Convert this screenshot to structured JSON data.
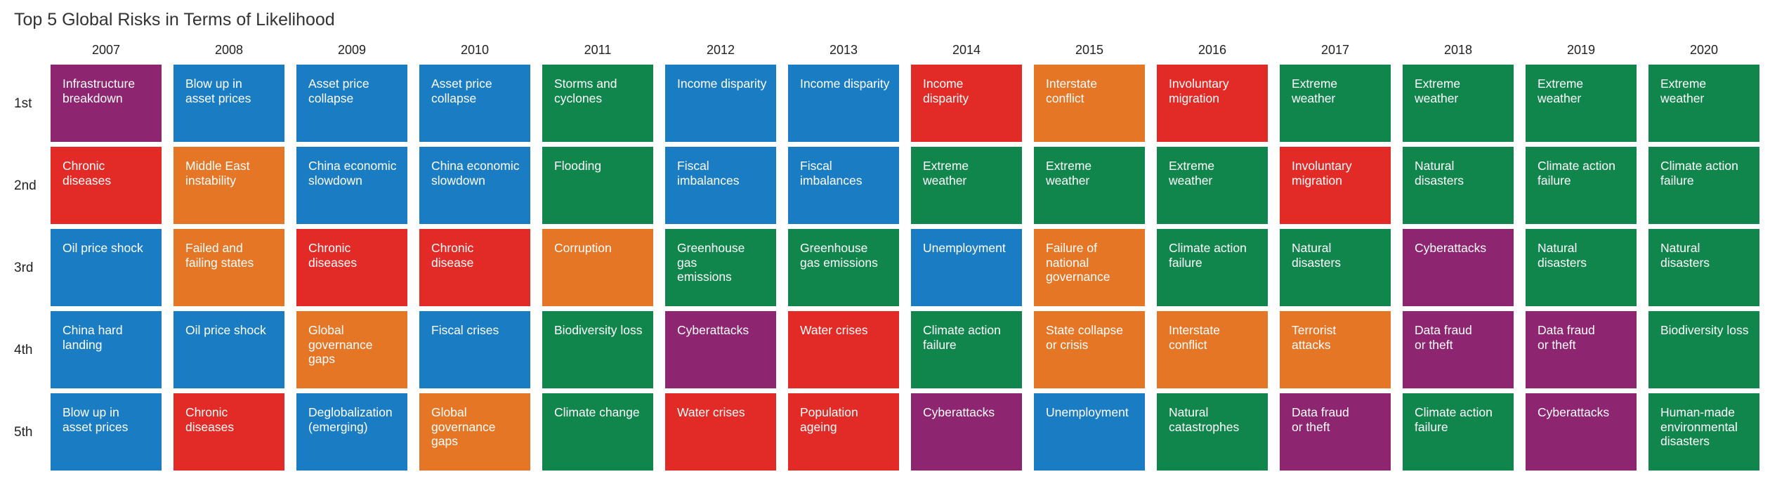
{
  "chart_data": {
    "type": "table",
    "title": "Top 5 Global Risks in Terms of Likelihood",
    "years": [
      "2007",
      "2008",
      "2009",
      "2010",
      "2011",
      "2012",
      "2013",
      "2014",
      "2015",
      "2016",
      "2017",
      "2018",
      "2019",
      "2020"
    ],
    "ranks": [
      "1st",
      "2nd",
      "3rd",
      "4th",
      "5th"
    ],
    "category_colors": {
      "economic": "#1a7dc3",
      "environmental": "#10864c",
      "geopolitical": "#e57626",
      "societal": "#e22a26",
      "technological": "#8d2570"
    },
    "columns": [
      [
        {
          "text": [
            "Infrastructure",
            "breakdown"
          ],
          "category": "technological"
        },
        {
          "text": [
            "Chronic",
            "diseases"
          ],
          "category": "societal"
        },
        {
          "text": [
            "Oil price shock"
          ],
          "category": "economic"
        },
        {
          "text": [
            "China hard",
            "landing"
          ],
          "category": "economic"
        },
        {
          "text": [
            "Blow up in",
            "asset prices"
          ],
          "category": "economic"
        }
      ],
      [
        {
          "text": [
            "Blow up in",
            "asset prices"
          ],
          "category": "economic"
        },
        {
          "text": [
            "Middle East",
            "instability"
          ],
          "category": "geopolitical"
        },
        {
          "text": [
            "Failed and",
            "failing states"
          ],
          "category": "geopolitical"
        },
        {
          "text": [
            "Oil price shock"
          ],
          "category": "economic"
        },
        {
          "text": [
            "Chronic",
            "diseases"
          ],
          "category": "societal"
        }
      ],
      [
        {
          "text": [
            "Asset price",
            "collapse"
          ],
          "category": "economic"
        },
        {
          "text": [
            "China economic",
            "slowdown"
          ],
          "category": "economic"
        },
        {
          "text": [
            "Chronic",
            "diseases"
          ],
          "category": "societal"
        },
        {
          "text": [
            "Global",
            "governance",
            "gaps"
          ],
          "category": "geopolitical"
        },
        {
          "text": [
            "Deglobalization",
            "(emerging)"
          ],
          "category": "economic"
        }
      ],
      [
        {
          "text": [
            "Asset price",
            "collapse"
          ],
          "category": "economic"
        },
        {
          "text": [
            "China economic",
            "slowdown"
          ],
          "category": "economic"
        },
        {
          "text": [
            "Chronic",
            "disease"
          ],
          "category": "societal"
        },
        {
          "text": [
            "Fiscal crises"
          ],
          "category": "economic"
        },
        {
          "text": [
            "Global",
            "governance",
            "gaps"
          ],
          "category": "geopolitical"
        }
      ],
      [
        {
          "text": [
            "Storms and",
            "cyclones"
          ],
          "category": "environmental"
        },
        {
          "text": [
            "Flooding"
          ],
          "category": "environmental"
        },
        {
          "text": [
            "Corruption"
          ],
          "category": "geopolitical"
        },
        {
          "text": [
            "Biodiversity loss"
          ],
          "category": "environmental"
        },
        {
          "text": [
            "Climate change"
          ],
          "category": "environmental"
        }
      ],
      [
        {
          "text": [
            "Income disparity"
          ],
          "category": "economic"
        },
        {
          "text": [
            "Fiscal",
            "imbalances"
          ],
          "category": "economic"
        },
        {
          "text": [
            "Greenhouse gas",
            "emissions"
          ],
          "category": "environmental"
        },
        {
          "text": [
            "Cyberattacks"
          ],
          "category": "technological"
        },
        {
          "text": [
            "Water crises"
          ],
          "category": "societal"
        }
      ],
      [
        {
          "text": [
            "Income disparity"
          ],
          "category": "economic"
        },
        {
          "text": [
            "Fiscal",
            "imbalances"
          ],
          "category": "economic"
        },
        {
          "text": [
            "Greenhouse",
            "gas emissions"
          ],
          "category": "environmental"
        },
        {
          "text": [
            "Water crises"
          ],
          "category": "societal"
        },
        {
          "text": [
            "Population",
            "ageing"
          ],
          "category": "societal"
        }
      ],
      [
        {
          "text": [
            "Income",
            "disparity"
          ],
          "category": "societal"
        },
        {
          "text": [
            "Extreme",
            "weather"
          ],
          "category": "environmental"
        },
        {
          "text": [
            "Unemployment"
          ],
          "category": "economic"
        },
        {
          "text": [
            "Climate action",
            "failure"
          ],
          "category": "environmental"
        },
        {
          "text": [
            "Cyberattacks"
          ],
          "category": "technological"
        }
      ],
      [
        {
          "text": [
            "Interstate",
            "conflict"
          ],
          "category": "geopolitical"
        },
        {
          "text": [
            "Extreme",
            "weather"
          ],
          "category": "environmental"
        },
        {
          "text": [
            "Failure of",
            "national",
            "governance"
          ],
          "category": "geopolitical"
        },
        {
          "text": [
            "State collapse",
            "or crisis"
          ],
          "category": "geopolitical"
        },
        {
          "text": [
            "Unemployment"
          ],
          "category": "economic"
        }
      ],
      [
        {
          "text": [
            "Involuntary",
            "migration"
          ],
          "category": "societal"
        },
        {
          "text": [
            "Extreme",
            "weather"
          ],
          "category": "environmental"
        },
        {
          "text": [
            "Climate action",
            "failure"
          ],
          "category": "environmental"
        },
        {
          "text": [
            "Interstate",
            "conflict"
          ],
          "category": "geopolitical"
        },
        {
          "text": [
            "Natural",
            "catastrophes"
          ],
          "category": "environmental"
        }
      ],
      [
        {
          "text": [
            "Extreme",
            "weather"
          ],
          "category": "environmental"
        },
        {
          "text": [
            "Involuntary",
            "migration"
          ],
          "category": "societal"
        },
        {
          "text": [
            "Natural",
            "disasters"
          ],
          "category": "environmental"
        },
        {
          "text": [
            "Terrorist",
            "attacks"
          ],
          "category": "geopolitical"
        },
        {
          "text": [
            "Data fraud",
            "or theft"
          ],
          "category": "technological"
        }
      ],
      [
        {
          "text": [
            "Extreme",
            "weather"
          ],
          "category": "environmental"
        },
        {
          "text": [
            "Natural",
            "disasters"
          ],
          "category": "environmental"
        },
        {
          "text": [
            "Cyberattacks"
          ],
          "category": "technological"
        },
        {
          "text": [
            "Data fraud",
            "or theft"
          ],
          "category": "technological"
        },
        {
          "text": [
            "Climate action",
            "failure"
          ],
          "category": "environmental"
        }
      ],
      [
        {
          "text": [
            "Extreme",
            "weather"
          ],
          "category": "environmental"
        },
        {
          "text": [
            "Climate action",
            "failure"
          ],
          "category": "environmental"
        },
        {
          "text": [
            "Natural",
            "disasters"
          ],
          "category": "environmental"
        },
        {
          "text": [
            "Data fraud",
            "or theft"
          ],
          "category": "technological"
        },
        {
          "text": [
            "Cyberattacks"
          ],
          "category": "technological"
        }
      ],
      [
        {
          "text": [
            "Extreme",
            "weather"
          ],
          "category": "environmental"
        },
        {
          "text": [
            "Climate action",
            "failure"
          ],
          "category": "environmental"
        },
        {
          "text": [
            "Natural",
            "disasters"
          ],
          "category": "environmental"
        },
        {
          "text": [
            "Biodiversity loss"
          ],
          "category": "environmental"
        },
        {
          "text": [
            "Human-made",
            "environmental",
            "disasters"
          ],
          "category": "environmental"
        }
      ]
    ]
  }
}
